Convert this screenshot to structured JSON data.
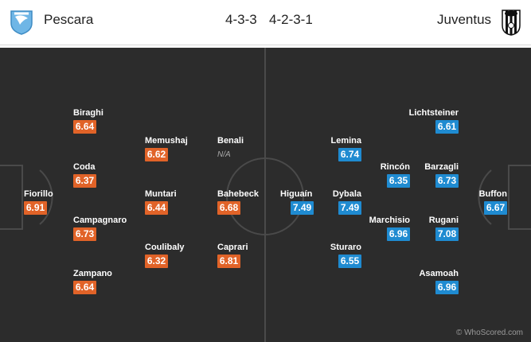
{
  "header": {
    "home_team": "Pescara",
    "home_formation": "4-3-3",
    "away_formation": "4-2-3-1",
    "away_team": "Juventus"
  },
  "colors": {
    "home_rating": "#e16328",
    "away_rating": "#1f8bd1",
    "pitch": "#2c2c2c"
  },
  "players": [
    {
      "id": "fiorillo",
      "name": "Fiorillo",
      "rating": "6.91",
      "side": "home"
    },
    {
      "id": "biraghi",
      "name": "Biraghi",
      "rating": "6.64",
      "side": "home"
    },
    {
      "id": "coda",
      "name": "Coda",
      "rating": "6.37",
      "side": "home"
    },
    {
      "id": "campagnaro",
      "name": "Campagnaro",
      "rating": "6.73",
      "side": "home"
    },
    {
      "id": "zampano",
      "name": "Zampano",
      "rating": "6.64",
      "side": "home"
    },
    {
      "id": "memushaj",
      "name": "Memushaj",
      "rating": "6.62",
      "side": "home"
    },
    {
      "id": "muntari",
      "name": "Muntari",
      "rating": "6.44",
      "side": "home"
    },
    {
      "id": "coulibaly",
      "name": "Coulibaly",
      "rating": "6.32",
      "side": "home"
    },
    {
      "id": "benali",
      "name": "Benali",
      "rating": "N/A",
      "side": "home"
    },
    {
      "id": "bahebeck",
      "name": "Bahebeck",
      "rating": "6.68",
      "side": "home"
    },
    {
      "id": "caprari",
      "name": "Caprari",
      "rating": "6.81",
      "side": "home"
    },
    {
      "id": "higuain",
      "name": "Higuaín",
      "rating": "7.49",
      "side": "away"
    },
    {
      "id": "lemina",
      "name": "Lemina",
      "rating": "6.74",
      "side": "away"
    },
    {
      "id": "dybala",
      "name": "Dybala",
      "rating": "7.49",
      "side": "away"
    },
    {
      "id": "sturaro",
      "name": "Sturaro",
      "rating": "6.55",
      "side": "away"
    },
    {
      "id": "rincon",
      "name": "Rincón",
      "rating": "6.35",
      "side": "away"
    },
    {
      "id": "marchisio",
      "name": "Marchisio",
      "rating": "6.96",
      "side": "away"
    },
    {
      "id": "lichtsteiner",
      "name": "Lichtsteiner",
      "rating": "6.61",
      "side": "away"
    },
    {
      "id": "barzagli",
      "name": "Barzagli",
      "rating": "6.73",
      "side": "away"
    },
    {
      "id": "rugani",
      "name": "Rugani",
      "rating": "7.08",
      "side": "away"
    },
    {
      "id": "asamoah",
      "name": "Asamoah",
      "rating": "6.96",
      "side": "away"
    },
    {
      "id": "buffon",
      "name": "Buffon",
      "rating": "6.67",
      "side": "away"
    }
  ],
  "watermark": "© WhoScored.com"
}
